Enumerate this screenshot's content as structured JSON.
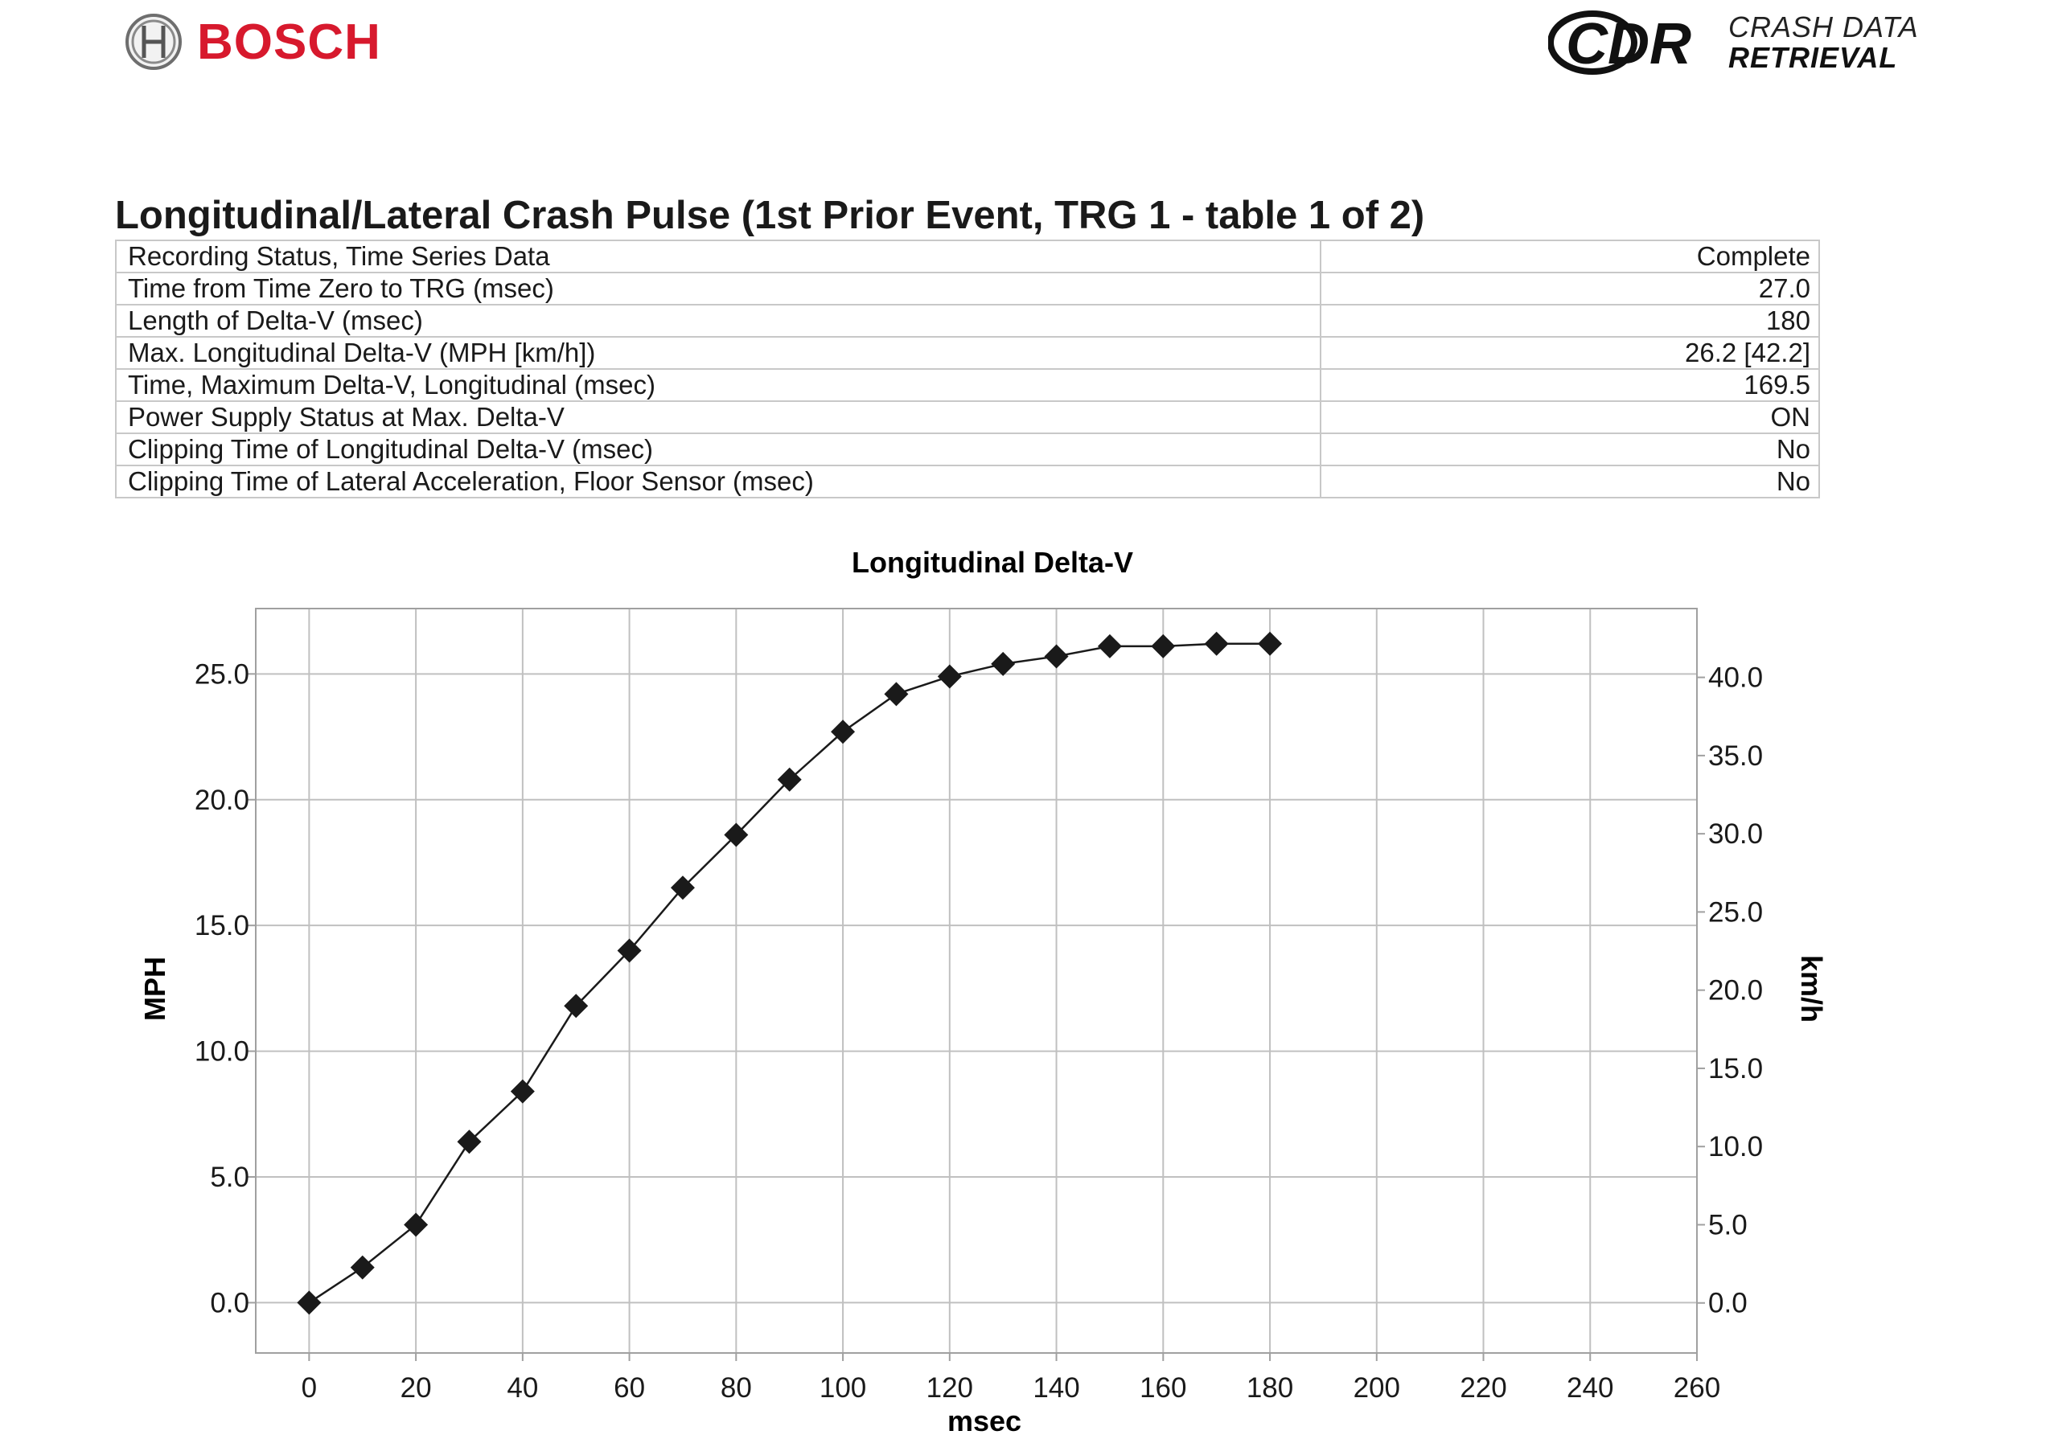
{
  "header": {
    "left_logo": {
      "brand": "BOSCH",
      "icon": "bosch-armature-icon"
    },
    "right_logo": {
      "mark": "CDR",
      "line1": "CRASH DATA",
      "line2": "RETRIEVAL"
    }
  },
  "section_title": "Longitudinal/Lateral Crash Pulse (1st Prior Event, TRG 1 - table 1 of 2)",
  "summary_table": [
    {
      "label": "Recording Status, Time Series Data",
      "value": "Complete"
    },
    {
      "label": "Time from Time Zero to TRG (msec)",
      "value": "27.0"
    },
    {
      "label": "Length of Delta-V (msec)",
      "value": "180"
    },
    {
      "label": "Max. Longitudinal Delta-V (MPH [km/h])",
      "value": "26.2 [42.2]"
    },
    {
      "label": "Time, Maximum Delta-V, Longitudinal (msec)",
      "value": "169.5"
    },
    {
      "label": "Power Supply Status at Max. Delta-V",
      "value": "ON"
    },
    {
      "label": "Clipping Time of Longitudinal Delta-V (msec)",
      "value": "No"
    },
    {
      "label": "Clipping Time of Lateral Acceleration, Floor Sensor (msec)",
      "value": "No"
    }
  ],
  "chart_data": {
    "type": "line",
    "title": "Longitudinal Delta-V",
    "xlabel": "msec",
    "ylabel": "MPH",
    "y2label": "km/h",
    "xlim": [
      -10,
      260
    ],
    "ylim": [
      -2.0,
      27.6
    ],
    "y2lim": [
      -3.2,
      44.4
    ],
    "x_ticks": [
      "0",
      "20",
      "40",
      "60",
      "80",
      "100",
      "120",
      "140",
      "160",
      "180",
      "200",
      "220",
      "240",
      "260"
    ],
    "y_ticks": [
      "0.0",
      "5.0",
      "10.0",
      "15.0",
      "20.0",
      "25.0"
    ],
    "y2_ticks": [
      "0.0",
      "5.0",
      "10.0",
      "15.0",
      "20.0",
      "25.0",
      "30.0",
      "35.0",
      "40.0"
    ],
    "grid": true,
    "marker": "diamond",
    "series": [
      {
        "x": [
          0,
          10,
          20,
          30,
          40,
          50,
          60,
          70,
          80,
          90,
          100,
          110,
          120,
          130,
          140,
          150,
          160,
          170,
          180
        ],
        "values": [
          0.0,
          1.4,
          3.1,
          6.4,
          8.4,
          11.8,
          14.0,
          16.5,
          18.6,
          20.8,
          22.7,
          24.2,
          24.9,
          25.4,
          25.7,
          26.1,
          26.1,
          26.2,
          26.2
        ]
      }
    ],
    "colors": {
      "line": "#1a1a1a",
      "grid": "#c0c0c0",
      "frame": "#a0a0a0"
    }
  }
}
